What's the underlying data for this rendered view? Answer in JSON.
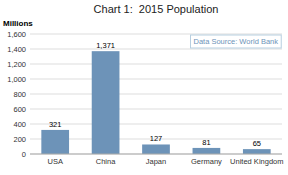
{
  "chart_data": {
    "type": "bar",
    "title": "Chart 1:  2015 Population",
    "ylabel": "Millions",
    "annotation": "Data Source: World Bank",
    "categories": [
      "USA",
      "China",
      "Japan",
      "Germany",
      "United Kingdom"
    ],
    "values": [
      321,
      1371,
      127,
      81,
      65
    ],
    "value_labels": [
      "321",
      "1,371",
      "127",
      "81",
      "65"
    ],
    "data_labels": true,
    "color": "#6d93b8",
    "ylim": [
      0,
      1600
    ],
    "yticks": [
      0,
      200,
      400,
      600,
      800,
      {
        "value": 1000,
        "label": "1,000"
      },
      {
        "value": 1200,
        "label": "1,200"
      },
      {
        "value": 1400,
        "label": "1,400"
      },
      {
        "value": 1600,
        "label": "1,600"
      }
    ],
    "grid": true
  }
}
